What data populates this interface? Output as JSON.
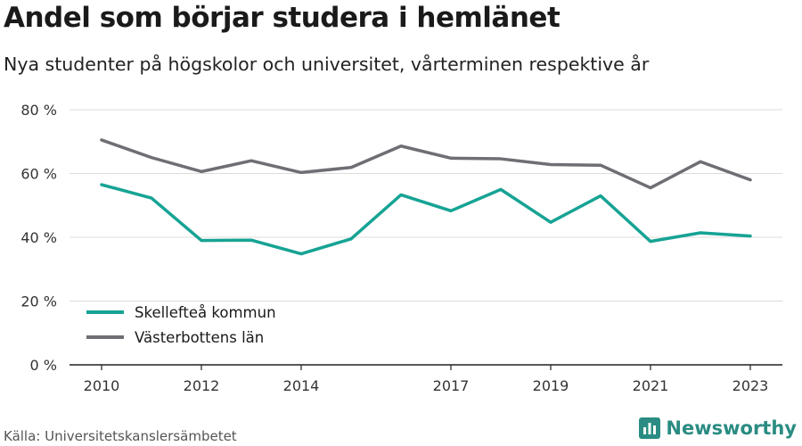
{
  "header": {
    "title": "Andel som börjar studera i hemlänet",
    "subtitle": "Nya studenter på högskolor och universitet, vårterminen respektive år"
  },
  "footer": {
    "source": "Källa: Universitetskanslersämbetet",
    "brand": "Newsworthy"
  },
  "colors": {
    "skelleftea": "#16a394",
    "vasterbotten": "#6e6e74",
    "grid": "#dcdcdc",
    "axis": "#222222"
  },
  "chart_data": {
    "type": "line",
    "title": "Andel som börjar studera i hemlänet",
    "subtitle": "Nya studenter på högskolor och universitet, vårterminen respektive år",
    "x": [
      2010,
      2011,
      2012,
      2013,
      2014,
      2015,
      2016,
      2017,
      2018,
      2019,
      2020,
      2021,
      2022,
      2023
    ],
    "x_ticks": [
      "2010",
      "2012",
      "2014",
      "2017",
      "2019",
      "2021",
      "2023"
    ],
    "y_ticks": [
      "0 %",
      "20 %",
      "40 %",
      "60 %",
      "80 %"
    ],
    "y_tick_values": [
      0,
      20,
      40,
      60,
      80
    ],
    "ylim": [
      0,
      80
    ],
    "xlim": [
      2010,
      2023
    ],
    "grid": "horizontal",
    "legend_position": "bottom-left",
    "series": [
      {
        "name": "Skellefteå kommun",
        "color_key": "skelleftea",
        "values": [
          56.5,
          52.3,
          39.0,
          39.1,
          34.8,
          39.5,
          53.3,
          48.3,
          55.0,
          44.7,
          53.0,
          38.7,
          41.4,
          40.4
        ]
      },
      {
        "name": "Västerbottens län",
        "color_key": "vasterbotten",
        "values": [
          70.5,
          65.0,
          60.6,
          64.0,
          60.3,
          61.9,
          68.6,
          64.8,
          64.6,
          62.8,
          62.6,
          55.5,
          63.7,
          58.0
        ]
      }
    ]
  }
}
